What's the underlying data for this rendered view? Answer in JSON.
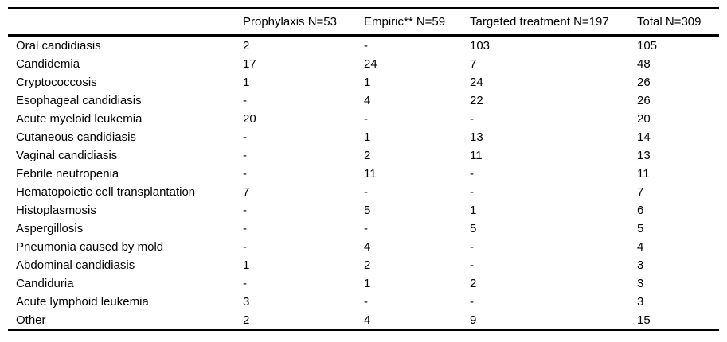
{
  "colors": {
    "background": "#ffffff",
    "text": "#000000",
    "border": "#000000"
  },
  "table": {
    "columns": [
      "",
      "Prophylaxis N=53",
      "Empiric** N=59",
      "Targeted treatment N=197",
      "Total N=309"
    ],
    "rows": [
      {
        "label": "Oral candidiasis",
        "values": [
          "2",
          "-",
          "103",
          "105"
        ]
      },
      {
        "label": "Candidemia",
        "values": [
          "17",
          "24",
          "7",
          "48"
        ]
      },
      {
        "label": "Cryptococcosis",
        "values": [
          "1",
          "1",
          "24",
          "26"
        ]
      },
      {
        "label": "Esophageal candidiasis",
        "values": [
          "-",
          "4",
          "22",
          "26"
        ]
      },
      {
        "label": "Acute myeloid leukemia",
        "values": [
          "20",
          "-",
          "-",
          "20"
        ]
      },
      {
        "label": "Cutaneous candidiasis",
        "values": [
          "-",
          "1",
          "13",
          "14"
        ]
      },
      {
        "label": "Vaginal candidiasis",
        "values": [
          "-",
          "2",
          "11",
          "13"
        ]
      },
      {
        "label": "Febrile neutropenia",
        "values": [
          "-",
          "11",
          "-",
          "11"
        ]
      },
      {
        "label": "Hematopoietic cell transplantation",
        "values": [
          "7",
          "-",
          "-",
          "7"
        ]
      },
      {
        "label": "Histoplasmosis",
        "values": [
          "-",
          "5",
          "1",
          "6"
        ]
      },
      {
        "label": "Aspergillosis",
        "values": [
          "-",
          "-",
          "5",
          "5"
        ]
      },
      {
        "label": "Pneumonia caused by mold",
        "values": [
          "-",
          "4",
          "-",
          "4"
        ]
      },
      {
        "label": "Abdominal candidiasis",
        "values": [
          "1",
          "2",
          "-",
          "3"
        ]
      },
      {
        "label": "Candiduria",
        "values": [
          "-",
          "1",
          "2",
          "3"
        ]
      },
      {
        "label": "Acute lymphoid leukemia",
        "values": [
          "3",
          "-",
          "-",
          "3"
        ]
      },
      {
        "label": "Other",
        "values": [
          "2",
          "4",
          "9",
          "15"
        ]
      }
    ]
  }
}
